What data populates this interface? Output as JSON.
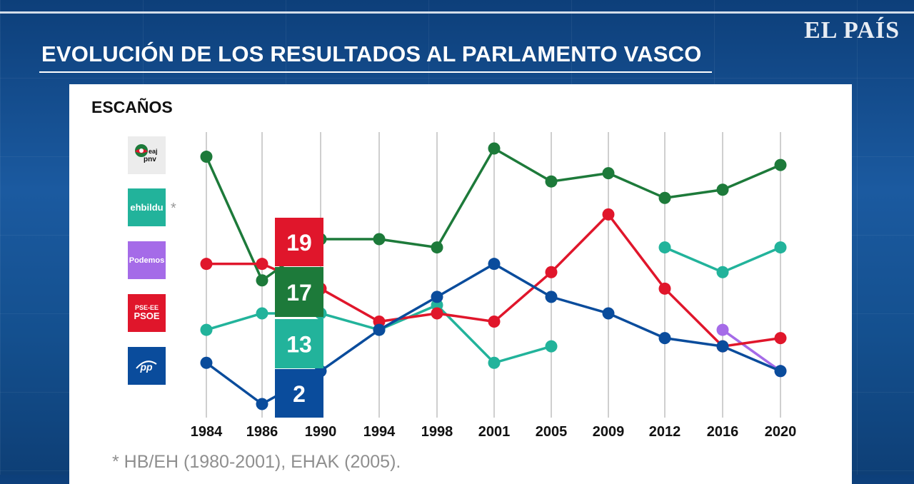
{
  "header": {
    "logo": "EL PAÍS",
    "title": "EVOLUCIÓN DE LOS RESULTADOS AL PARLAMENTO VASCO",
    "subtitle": "ESCAÑOS"
  },
  "legend": [
    {
      "id": "pnv",
      "label": "eaj pnv",
      "color": "#1d7a3a",
      "box_bg": "#ececec"
    },
    {
      "id": "bildu",
      "label": "ehbildu",
      "asterisk": "*",
      "color": "#22b39b",
      "box_bg": "#22b39b"
    },
    {
      "id": "podemos",
      "label": "Podemos",
      "color": "#a56be8",
      "box_bg": "#a56be8"
    },
    {
      "id": "pse",
      "label_line1": "PSE-EE",
      "label_line2": "PSOE",
      "color": "#e0162b",
      "box_bg": "#e0162b"
    },
    {
      "id": "pp",
      "label": "pp",
      "color": "#0a4c9c",
      "box_bg": "#0a4c9c"
    }
  ],
  "chart_data": {
    "type": "line",
    "title": "ESCAÑOS",
    "categories": [
      "1984",
      "1986",
      "1990",
      "1994",
      "1998",
      "2001",
      "2005",
      "2009",
      "2012",
      "2016",
      "2020"
    ],
    "ylim": [
      0,
      35
    ],
    "grid": "vertical",
    "series": [
      {
        "name": "EAJ-PNV",
        "color": "#1d7a3a",
        "values": [
          32,
          17,
          22,
          22,
          21,
          33,
          29,
          30,
          27,
          28,
          31
        ]
      },
      {
        "name": "EH Bildu (HB/EH, EHAK)",
        "color": "#22b39b",
        "values": [
          11,
          13,
          13,
          11,
          14,
          7,
          9,
          null,
          21,
          18,
          21
        ]
      },
      {
        "name": "Elkarrekin Podemos",
        "color": "#a56be8",
        "values": [
          null,
          null,
          null,
          null,
          null,
          null,
          null,
          null,
          null,
          11,
          6
        ]
      },
      {
        "name": "PSE-EE (PSOE)",
        "color": "#e0162b",
        "values": [
          19,
          19,
          16,
          12,
          13,
          12,
          18,
          25,
          16,
          9,
          10
        ]
      },
      {
        "name": "PP",
        "color": "#0a4c9c",
        "values": [
          7,
          2,
          6,
          11,
          15,
          19,
          15,
          13,
          10,
          9,
          6
        ]
      }
    ],
    "highlight": {
      "category_index": 1,
      "labels": [
        {
          "value": "19",
          "color": "#e0162b"
        },
        {
          "value": "17",
          "color": "#1d7a3a"
        },
        {
          "value": "13",
          "color": "#22b39b"
        },
        {
          "value": "2",
          "color": "#0a4c9c"
        }
      ]
    }
  },
  "footnote": "* HB/EH (1980-2001), EHAK (2005)."
}
